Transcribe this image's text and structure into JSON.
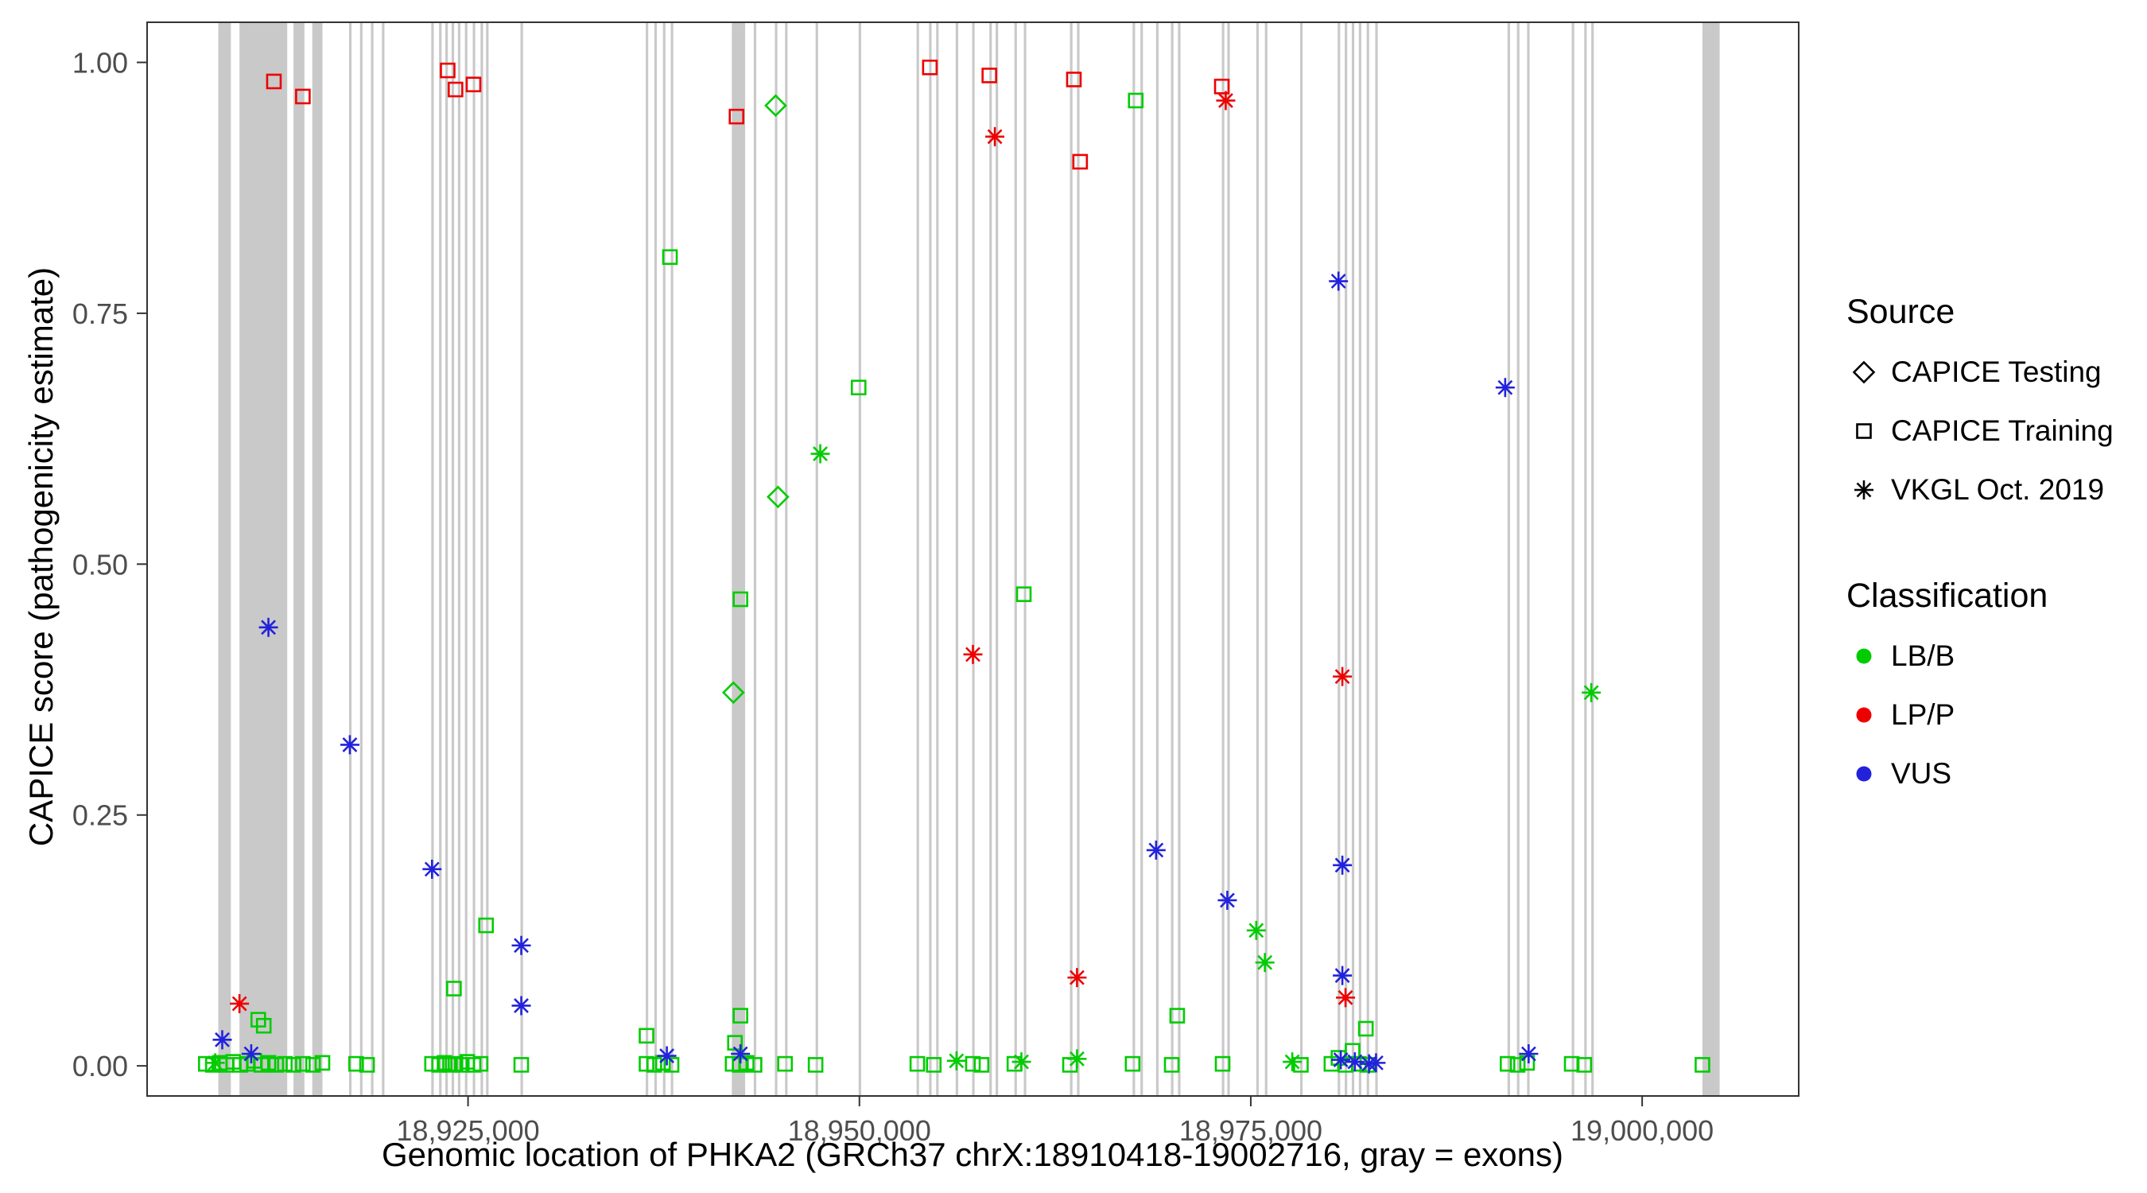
{
  "figure": {
    "background": "#ffffff",
    "x_axis": {
      "label": "Genomic location of PHKA2 (GRCh37 chrX:18910418-19002716, gray = exons)",
      "ticks": [
        18925000,
        18950000,
        18975000,
        19000000
      ],
      "tick_labels": [
        "18,925,000",
        "18,950,000",
        "18,975,000",
        "19,000,000"
      ],
      "range": [
        18904500,
        19010000
      ]
    },
    "y_axis": {
      "label": "CAPICE score (pathogenicity estimate)",
      "ticks": [
        0,
        0.25,
        0.5,
        0.75,
        1
      ],
      "tick_labels": [
        "0.00",
        "0.25",
        "0.50",
        "0.75",
        "1.00"
      ],
      "range": [
        -0.03,
        1.04
      ]
    },
    "legend": {
      "position": "right",
      "source": {
        "title": "Source",
        "items": [
          {
            "label": "CAPICE Testing",
            "marker": "diamond"
          },
          {
            "label": "CAPICE Training",
            "marker": "square"
          },
          {
            "label": "VKGL Oct. 2019",
            "marker": "asterisk"
          }
        ]
      },
      "classification": {
        "title": "Classification",
        "items": [
          {
            "label": "LB/B",
            "color": "#00cc00"
          },
          {
            "label": "LP/P",
            "color": "#ee0000"
          },
          {
            "label": "VUS",
            "color": "#2222dd"
          }
        ]
      }
    }
  },
  "chart_data": {
    "type": "scatter",
    "title": "",
    "xlabel": "Genomic location of PHKA2 (GRCh37 chrX:18910418-19002716, gray = exons)",
    "ylabel": "CAPICE score (pathogenicity estimate)",
    "xlim": [
      18904500,
      19010000
    ],
    "ylim": [
      -0.03,
      1.04
    ],
    "grid": false,
    "exon_color": "#c9c9c9",
    "exons": [
      [
        18909050,
        18909850
      ],
      [
        18910400,
        18913450
      ],
      [
        18913850,
        18914550
      ],
      [
        18915050,
        18915700
      ],
      [
        18917400,
        18917560
      ],
      [
        18918100,
        18918260
      ],
      [
        18918800,
        18918960
      ],
      [
        18919500,
        18919660
      ],
      [
        18922650,
        18922810
      ],
      [
        18923150,
        18923310
      ],
      [
        18923550,
        18923710
      ],
      [
        18923950,
        18924110
      ],
      [
        18924350,
        18924510
      ],
      [
        18924800,
        18924960
      ],
      [
        18925300,
        18925460
      ],
      [
        18925800,
        18925960
      ],
      [
        18926150,
        18926310
      ],
      [
        18928350,
        18928510
      ],
      [
        18936350,
        18936510
      ],
      [
        18936900,
        18937060
      ],
      [
        18937450,
        18937610
      ],
      [
        18937950,
        18938110
      ],
      [
        18941850,
        18942700
      ],
      [
        18943250,
        18943410
      ],
      [
        18944600,
        18944760
      ],
      [
        18945250,
        18945410
      ],
      [
        18947200,
        18947360
      ],
      [
        18949950,
        18950110
      ],
      [
        18953650,
        18953810
      ],
      [
        18954450,
        18954610
      ],
      [
        18954900,
        18955060
      ],
      [
        18956150,
        18956310
      ],
      [
        18957200,
        18957360
      ],
      [
        18958300,
        18958460
      ],
      [
        18958700,
        18958860
      ],
      [
        18959900,
        18960060
      ],
      [
        18960500,
        18960660
      ],
      [
        18963450,
        18963610
      ],
      [
        18963900,
        18964060
      ],
      [
        18967450,
        18967610
      ],
      [
        18967950,
        18968110
      ],
      [
        18968950,
        18969110
      ],
      [
        18969900,
        18970060
      ],
      [
        18970350,
        18970510
      ],
      [
        18973150,
        18973310
      ],
      [
        18973500,
        18973660
      ],
      [
        18975350,
        18975510
      ],
      [
        18975900,
        18976060
      ],
      [
        18978150,
        18978310
      ],
      [
        18980550,
        18980710
      ],
      [
        18981000,
        18981160
      ],
      [
        18981450,
        18981610
      ],
      [
        18981900,
        18982060
      ],
      [
        18982400,
        18982560
      ],
      [
        18982950,
        18983110
      ],
      [
        18991400,
        18991560
      ],
      [
        18992000,
        18992160
      ],
      [
        18992650,
        18992810
      ],
      [
        18995500,
        18995660
      ],
      [
        18996300,
        18996460
      ],
      [
        18996750,
        18996910
      ],
      [
        19003850,
        19004950
      ]
    ],
    "series": [
      {
        "name": "LB/B - CAPICE Testing",
        "classification": "LB/B",
        "source": "CAPICE Testing",
        "marker": "diamond",
        "color": "#00cc00",
        "points": [
          [
            18944650,
            0.957
          ],
          [
            18944800,
            0.567
          ],
          [
            18941950,
            0.372
          ]
        ]
      },
      {
        "name": "LB/B - CAPICE Training",
        "classification": "LB/B",
        "source": "CAPICE Training",
        "marker": "square",
        "color": "#00cc00",
        "points": [
          [
            18937900,
            0.806
          ],
          [
            18949950,
            0.676
          ],
          [
            18967650,
            0.962
          ],
          [
            18942400,
            0.465
          ],
          [
            18960500,
            0.47
          ],
          [
            18926150,
            0.14
          ],
          [
            18924100,
            0.077
          ],
          [
            18942400,
            0.05
          ],
          [
            18970300,
            0.05
          ],
          [
            18982350,
            0.037
          ],
          [
            18911600,
            0.046
          ],
          [
            18911950,
            0.04
          ],
          [
            18936400,
            0.03
          ],
          [
            18942050,
            0.023
          ],
          [
            18908250,
            0.002
          ],
          [
            18908700,
            0.001
          ],
          [
            18909150,
            0.003
          ],
          [
            18909550,
            0.001
          ],
          [
            18910000,
            0.004
          ],
          [
            18910450,
            0.001
          ],
          [
            18910900,
            0.002
          ],
          [
            18911350,
            0.005
          ],
          [
            18911800,
            0.001
          ],
          [
            18912250,
            0.003
          ],
          [
            18912750,
            0.001
          ],
          [
            18913300,
            0.002
          ],
          [
            18913850,
            0.001
          ],
          [
            18914450,
            0.002
          ],
          [
            18915100,
            0.001
          ],
          [
            18915700,
            0.003
          ],
          [
            18917850,
            0.002
          ],
          [
            18918550,
            0.001
          ],
          [
            18922700,
            0.002
          ],
          [
            18923150,
            0.001
          ],
          [
            18923500,
            0.003
          ],
          [
            18923850,
            0.001
          ],
          [
            18924200,
            0.002
          ],
          [
            18924600,
            0.001
          ],
          [
            18924950,
            0.004
          ],
          [
            18925350,
            0.001
          ],
          [
            18925800,
            0.002
          ],
          [
            18928400,
            0.001
          ],
          [
            18936400,
            0.002
          ],
          [
            18936900,
            0.001
          ],
          [
            18937450,
            0.003
          ],
          [
            18938000,
            0.001
          ],
          [
            18941900,
            0.002
          ],
          [
            18942350,
            0.001
          ],
          [
            18942800,
            0.003
          ],
          [
            18943300,
            0.001
          ],
          [
            18945250,
            0.002
          ],
          [
            18947200,
            0.001
          ],
          [
            18953700,
            0.002
          ],
          [
            18954750,
            0.001
          ],
          [
            18957250,
            0.002
          ],
          [
            18957800,
            0.001
          ],
          [
            18959900,
            0.002
          ],
          [
            18963450,
            0.001
          ],
          [
            18967450,
            0.002
          ],
          [
            18969950,
            0.001
          ],
          [
            18973200,
            0.002
          ],
          [
            18978200,
            0.001
          ],
          [
            18980150,
            0.002
          ],
          [
            18980600,
            0.008
          ],
          [
            18981050,
            0.001
          ],
          [
            18981500,
            0.015
          ],
          [
            18981900,
            0.002
          ],
          [
            18982450,
            0.001
          ],
          [
            18991400,
            0.002
          ],
          [
            18992050,
            0.001
          ],
          [
            18992650,
            0.003
          ],
          [
            18995500,
            0.002
          ],
          [
            18996300,
            0.001
          ],
          [
            19003850,
            0.001
          ]
        ]
      },
      {
        "name": "LB/B - VKGL Oct. 2019",
        "classification": "LB/B",
        "source": "VKGL Oct. 2019",
        "marker": "asterisk",
        "color": "#00cc00",
        "points": [
          [
            18947500,
            0.61
          ],
          [
            18996750,
            0.372
          ],
          [
            18975350,
            0.135
          ],
          [
            18975900,
            0.103
          ],
          [
            18956200,
            0.005
          ],
          [
            18960350,
            0.004
          ],
          [
            18963900,
            0.007
          ],
          [
            18977650,
            0.004
          ],
          [
            18908850,
            0.003
          ]
        ]
      },
      {
        "name": "LP/P - CAPICE Training",
        "classification": "LP/P",
        "source": "CAPICE Training",
        "marker": "square",
        "color": "#ee0000",
        "points": [
          [
            18912600,
            0.981
          ],
          [
            18914450,
            0.966
          ],
          [
            18923700,
            0.992
          ],
          [
            18924200,
            0.973
          ],
          [
            18925350,
            0.978
          ],
          [
            18942150,
            0.946
          ],
          [
            18954500,
            0.995
          ],
          [
            18958300,
            0.987
          ],
          [
            18963700,
            0.983
          ],
          [
            18964100,
            0.901
          ],
          [
            18973150,
            0.976
          ]
        ]
      },
      {
        "name": "LP/P - VKGL Oct. 2019",
        "classification": "LP/P",
        "source": "VKGL Oct. 2019",
        "marker": "asterisk",
        "color": "#ee0000",
        "points": [
          [
            18958650,
            0.926
          ],
          [
            18957250,
            0.41
          ],
          [
            18973400,
            0.962
          ],
          [
            18980850,
            0.388
          ],
          [
            18963900,
            0.088
          ],
          [
            18910400,
            0.062
          ],
          [
            18981050,
            0.068
          ]
        ]
      },
      {
        "name": "VUS - VKGL Oct. 2019",
        "classification": "VUS",
        "source": "VKGL Oct. 2019",
        "marker": "asterisk",
        "color": "#2222dd",
        "points": [
          [
            18912250,
            0.437
          ],
          [
            18917450,
            0.32
          ],
          [
            18922700,
            0.196
          ],
          [
            18928400,
            0.12
          ],
          [
            18928400,
            0.06
          ],
          [
            18980600,
            0.782
          ],
          [
            18991250,
            0.676
          ],
          [
            18968950,
            0.215
          ],
          [
            18973500,
            0.165
          ],
          [
            18980850,
            0.2
          ],
          [
            18980850,
            0.09
          ],
          [
            18909300,
            0.026
          ],
          [
            18911150,
            0.012
          ],
          [
            18937700,
            0.01
          ],
          [
            18942400,
            0.012
          ],
          [
            18992750,
            0.012
          ],
          [
            18980750,
            0.006
          ],
          [
            18981650,
            0.004
          ],
          [
            18982550,
            0.002
          ],
          [
            18983000,
            0.003
          ]
        ]
      }
    ]
  }
}
